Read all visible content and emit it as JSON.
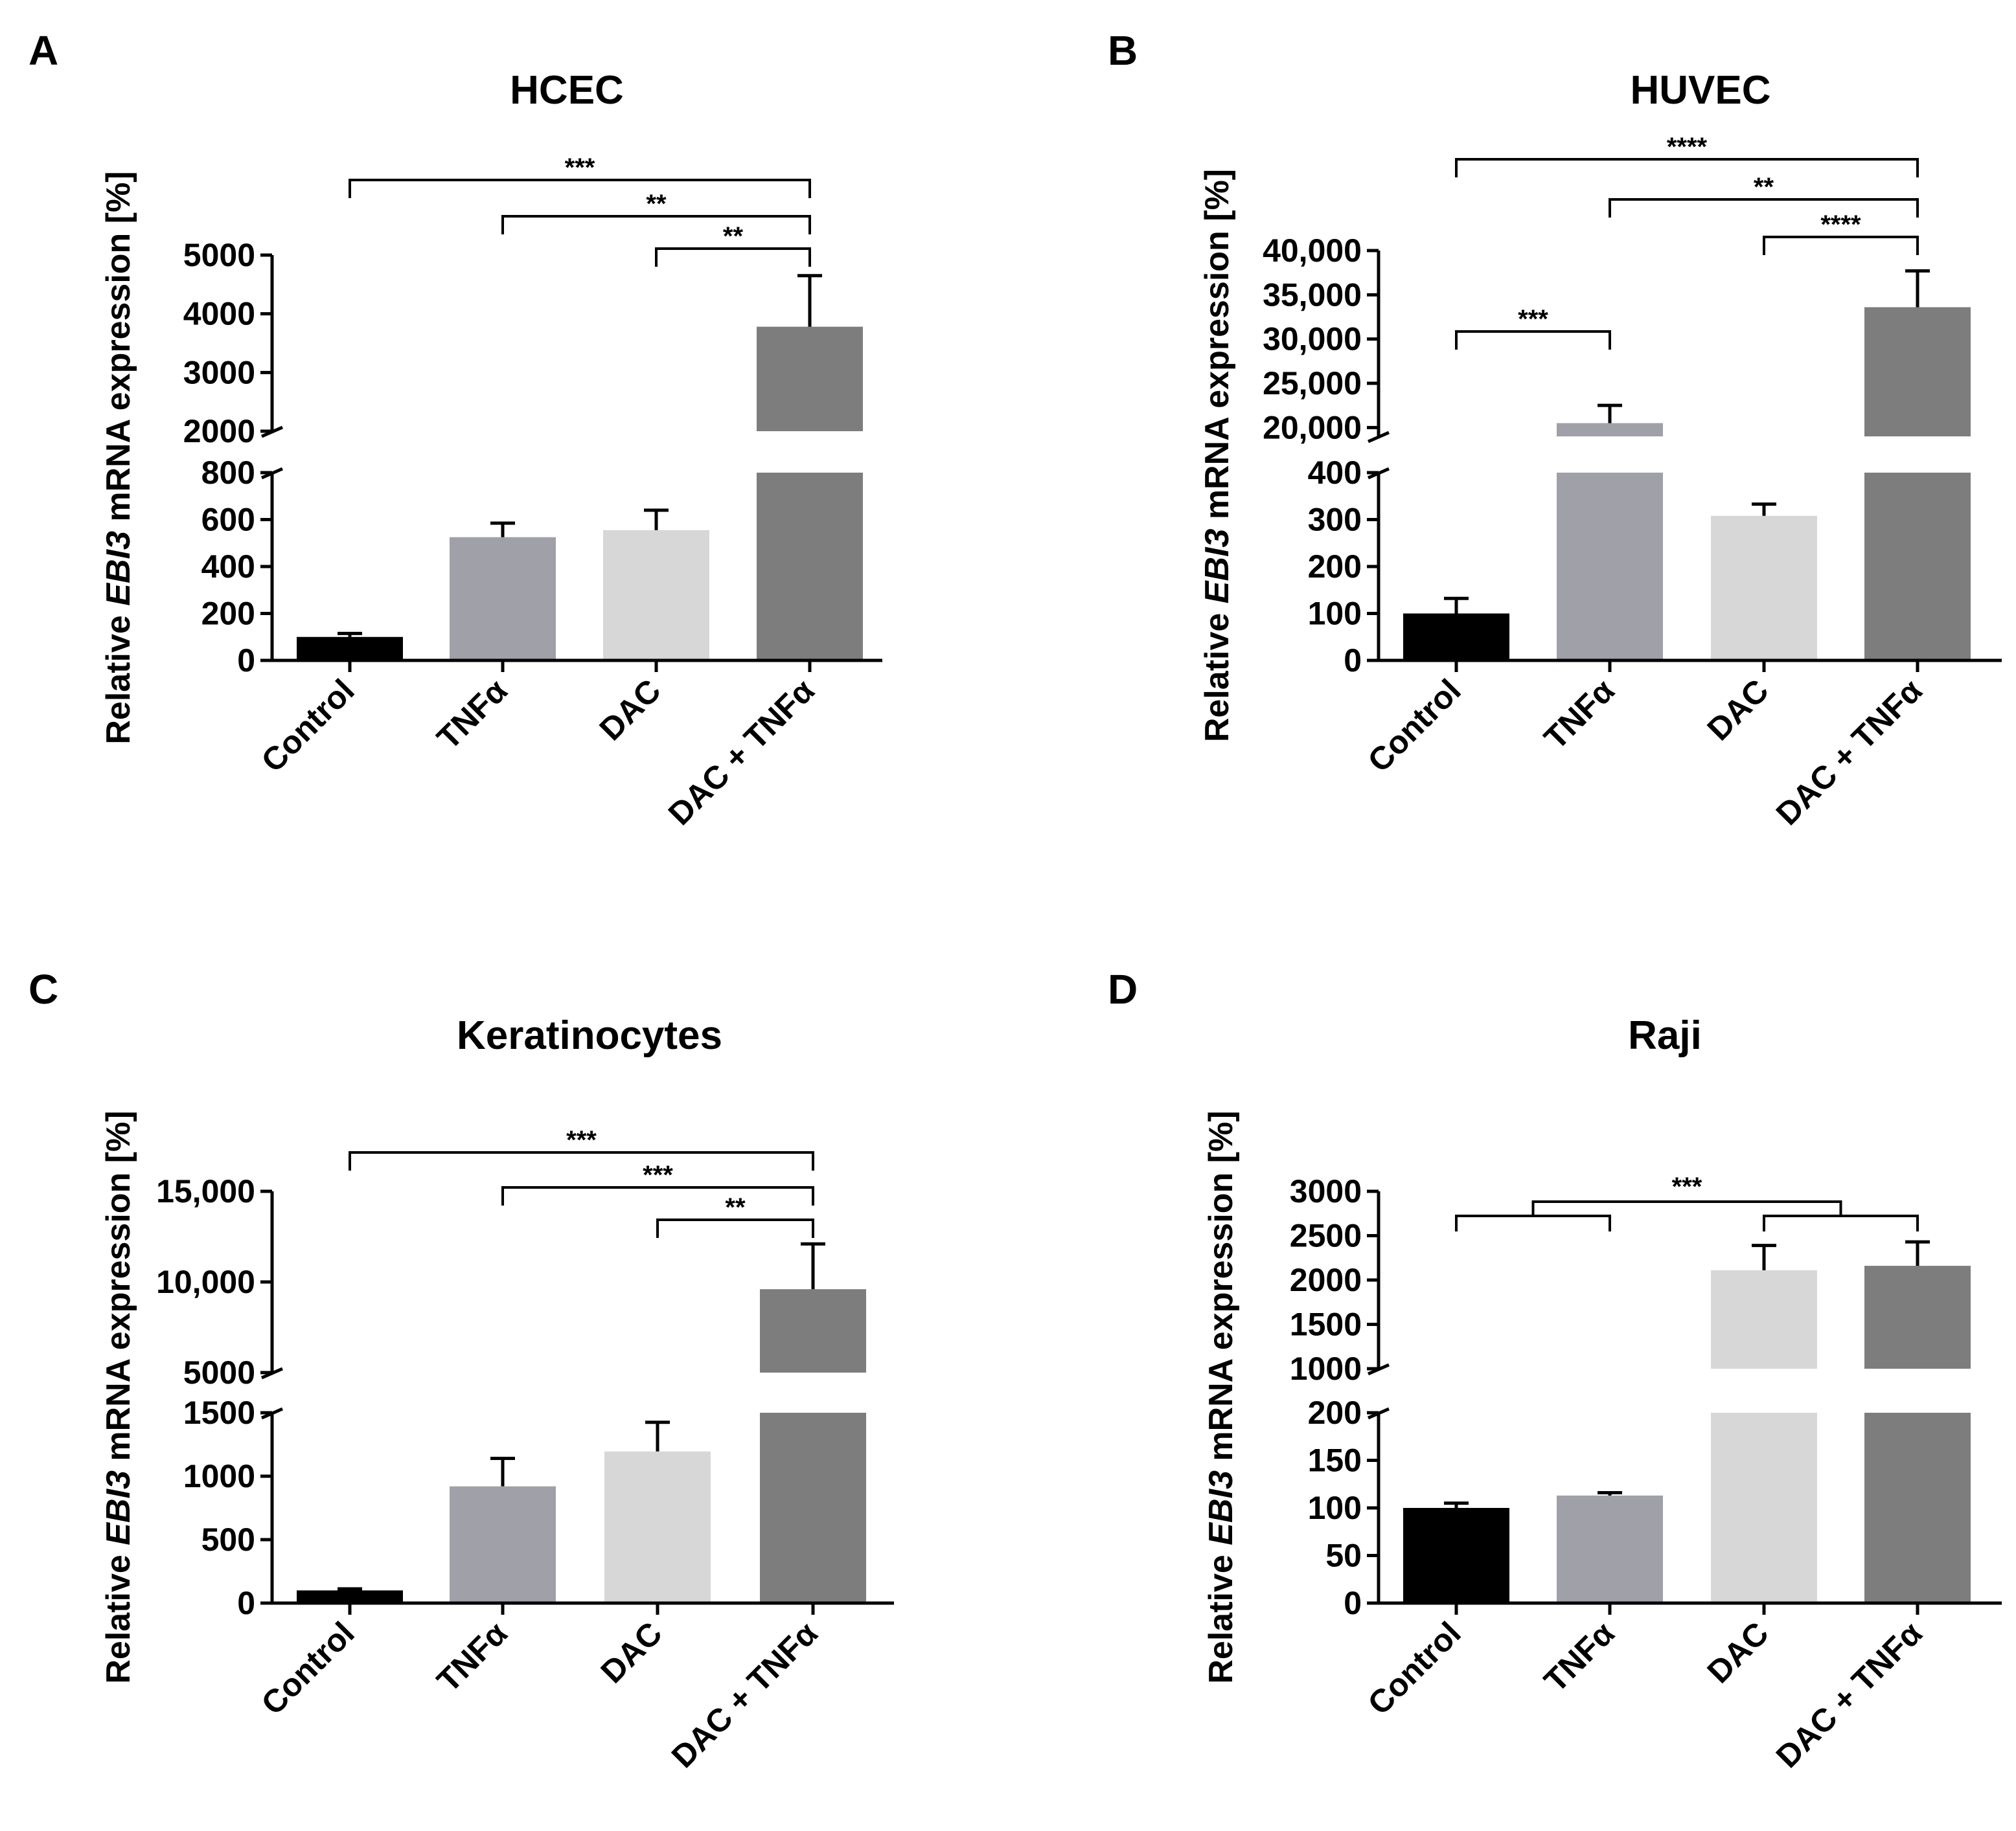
{
  "chart_data": [
    {
      "panel": "A",
      "type": "bar",
      "title": "HCEC",
      "ylabel": {
        "pre": "Relative ",
        "gene": "EBI3",
        "post": " mRNA expression [%]"
      },
      "categories": [
        "Control",
        "TNFα",
        "DAC",
        "DAC + TNFα"
      ],
      "values": [
        100,
        525,
        555,
        3780
      ],
      "errors": [
        15,
        60,
        85,
        870
      ],
      "colors": [
        "#000000",
        "#a0a0a8",
        "#d7d7d7",
        "#7d7d7d"
      ],
      "broken_axis": {
        "lower": {
          "range": [
            0,
            800
          ],
          "ticks": [
            0,
            200,
            400,
            600,
            800
          ],
          "tick_labels": [
            "0",
            "200",
            "400",
            "600",
            "800"
          ]
        },
        "upper": {
          "range": [
            2000,
            5000
          ],
          "ticks": [
            2000,
            3000,
            4000,
            5000
          ],
          "tick_labels": [
            "2000",
            "3000",
            "4000",
            "5000"
          ]
        }
      },
      "significance": [
        {
          "from": 0,
          "to": 3,
          "label": "***"
        },
        {
          "from": 1,
          "to": 3,
          "label": "**"
        },
        {
          "from": 2,
          "to": 3,
          "label": "**"
        }
      ]
    },
    {
      "panel": "B",
      "type": "bar",
      "title": "HUVEC",
      "ylabel": {
        "pre": "Relative ",
        "gene": "EBI3",
        "post": " mRNA expression [%]"
      },
      "categories": [
        "Control",
        "TNFα",
        "DAC",
        "DAC + TNFα"
      ],
      "values": [
        100,
        20500,
        308,
        33600
      ],
      "errors": [
        32,
        2000,
        25,
        4100
      ],
      "colors": [
        "#000000",
        "#a0a0a8",
        "#d7d7d7",
        "#7d7d7d"
      ],
      "broken_axis": {
        "lower": {
          "range": [
            0,
            400
          ],
          "ticks": [
            0,
            100,
            200,
            300,
            400
          ],
          "tick_labels": [
            "0",
            "100",
            "200",
            "300",
            "400"
          ]
        },
        "upper": {
          "range": [
            19000,
            40000
          ],
          "ticks": [
            20000,
            25000,
            30000,
            35000,
            40000
          ],
          "tick_labels": [
            "20,000",
            "25,000",
            "30,000",
            "35,000",
            "40,000"
          ]
        }
      },
      "significance": [
        {
          "from": 0,
          "to": 1,
          "label": "***"
        },
        {
          "from": 0,
          "to": 3,
          "label": "****"
        },
        {
          "from": 1,
          "to": 3,
          "label": "**"
        },
        {
          "from": 2,
          "to": 3,
          "label": "****"
        }
      ]
    },
    {
      "panel": "C",
      "type": "bar",
      "title": "Keratinocytes",
      "ylabel": {
        "pre": "Relative ",
        "gene": "EBI3",
        "post": " mRNA expression [%]"
      },
      "categories": [
        "Control",
        "TNFα",
        "DAC",
        "DAC + TNFα"
      ],
      "values": [
        100,
        920,
        1195,
        9600
      ],
      "errors": [
        12,
        220,
        230,
        2500
      ],
      "colors": [
        "#000000",
        "#a0a0a8",
        "#d7d7d7",
        "#7d7d7d"
      ],
      "broken_axis": {
        "lower": {
          "range": [
            0,
            1500
          ],
          "ticks": [
            0,
            500,
            1000,
            1500
          ],
          "tick_labels": [
            "0",
            "500",
            "1000",
            "1500"
          ]
        },
        "upper": {
          "range": [
            5000,
            15000
          ],
          "ticks": [
            5000,
            10000,
            15000
          ],
          "tick_labels": [
            "5000",
            "10,000",
            "15,000"
          ]
        }
      },
      "significance": [
        {
          "from": 0,
          "to": 3,
          "label": "***"
        },
        {
          "from": 1,
          "to": 3,
          "label": "***"
        },
        {
          "from": 2,
          "to": 3,
          "label": "**"
        }
      ]
    },
    {
      "panel": "D",
      "type": "bar",
      "title": "Raji",
      "ylabel": {
        "pre": "Relative ",
        "gene": "EBI3",
        "post": " mRNA expression [%]"
      },
      "categories": [
        "Control",
        "TNFα",
        "DAC",
        "DAC + TNFα"
      ],
      "values": [
        100,
        113,
        2110,
        2160
      ],
      "errors": [
        5,
        3,
        280,
        270
      ],
      "colors": [
        "#000000",
        "#a0a0a8",
        "#d7d7d7",
        "#7d7d7d"
      ],
      "broken_axis": {
        "lower": {
          "range": [
            0,
            200
          ],
          "ticks": [
            0,
            50,
            100,
            150,
            200
          ],
          "tick_labels": [
            "0",
            "50",
            "100",
            "150",
            "200"
          ]
        },
        "upper": {
          "range": [
            1000,
            3000
          ],
          "ticks": [
            1000,
            1500,
            2000,
            2500,
            3000
          ],
          "tick_labels": [
            "1000",
            "1500",
            "2000",
            "2500",
            "3000"
          ]
        }
      },
      "significance": [
        {
          "group_from": [
            0,
            1
          ],
          "group_to": [
            2,
            3
          ],
          "label": "***"
        }
      ]
    }
  ]
}
